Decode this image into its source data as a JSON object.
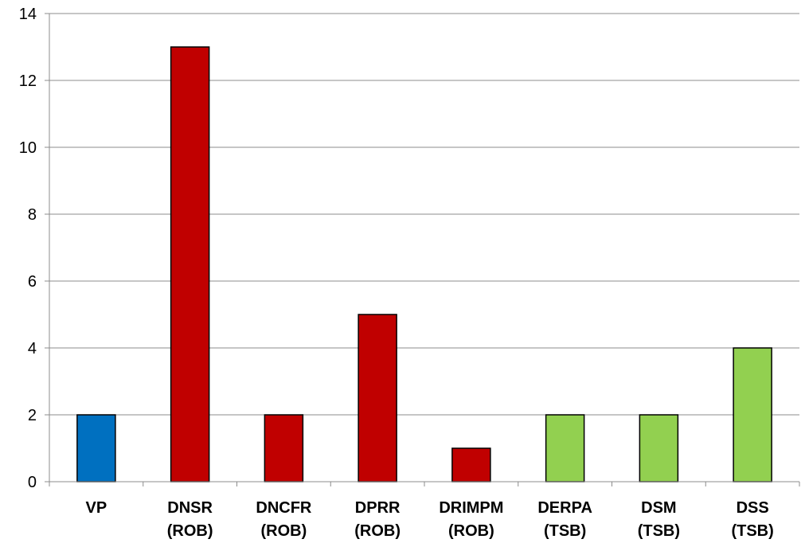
{
  "chart_data": {
    "type": "bar",
    "title": "",
    "xlabel": "",
    "ylabel": "",
    "ylim": [
      0,
      14
    ],
    "yticks": [
      "0",
      "2",
      "4",
      "6",
      "8",
      "10",
      "12",
      "14"
    ],
    "grid": true,
    "legend": "none",
    "categories": [
      [
        "VP"
      ],
      [
        "DNSR",
        "(ROB)"
      ],
      [
        "DNCFR",
        "(ROB)"
      ],
      [
        "DPRR",
        "(ROB)"
      ],
      [
        "DRIMPM",
        "(ROB)"
      ],
      [
        "DERPA",
        "(TSB)"
      ],
      [
        "DSM",
        "(TSB)"
      ],
      [
        "DSS",
        "(TSB)"
      ]
    ],
    "values": [
      2,
      13,
      2,
      5,
      1,
      2,
      2,
      4
    ],
    "colors": [
      "#0070c0",
      "#c00000",
      "#c00000",
      "#c00000",
      "#c00000",
      "#92d050",
      "#92d050",
      "#92d050"
    ]
  }
}
